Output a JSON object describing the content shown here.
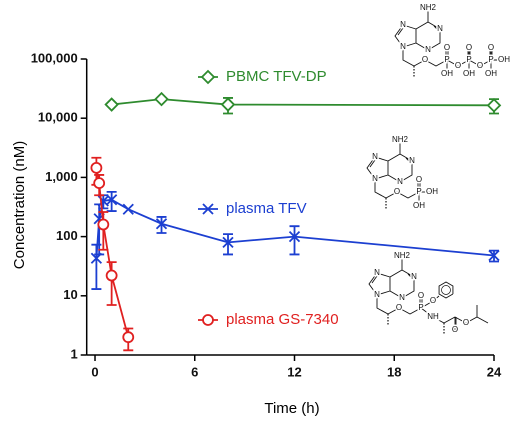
{
  "chart_data": {
    "type": "line",
    "x_label": "Time (h)",
    "y_label": "Concentration (nM)",
    "xlim": [
      -0.5,
      24
    ],
    "xticks": [
      0,
      6,
      12,
      18,
      24
    ],
    "ylim": [
      1,
      100000
    ],
    "yscale": "log",
    "yticks": [
      1,
      10,
      100,
      {
        "value": 1000,
        "label": "1,000"
      },
      {
        "value": 10000,
        "label": "10,000"
      },
      {
        "value": 100000,
        "label": "100,000"
      }
    ],
    "series": [
      {
        "name": "PBMC TFV-DP",
        "color": "#2e8b2e",
        "marker": "diamond",
        "x": [
          1,
          4,
          8,
          24
        ],
        "values": [
          17000,
          21000,
          17000,
          16500
        ],
        "errors": [
          null,
          null,
          5000,
          4500
        ]
      },
      {
        "name": "plasma TFV",
        "color": "#1c3fd1",
        "marker": "x",
        "x": [
          0.083,
          0.25,
          0.5,
          1,
          2,
          4,
          8,
          12,
          24
        ],
        "values": [
          43,
          200,
          400,
          420,
          290,
          165,
          80,
          100,
          48
        ],
        "errors": [
          30,
          150,
          100,
          150,
          null,
          50,
          30,
          50,
          10
        ]
      },
      {
        "name": "plasma GS-7340",
        "color": "#e02020",
        "marker": "circle",
        "x": [
          0.083,
          0.25,
          0.5,
          1,
          2
        ],
        "values": [
          1450,
          800,
          160,
          22,
          2
        ],
        "errors": [
          700,
          300,
          100,
          15,
          0.8
        ]
      }
    ]
  },
  "structures": [
    {
      "labels": [
        "NH2",
        "N",
        "N",
        "N",
        "N",
        "O",
        "P",
        "O",
        "OH",
        "O",
        "P",
        "O",
        "OH",
        "O",
        "P",
        "O",
        "OH",
        "OH"
      ]
    },
    {
      "labels": [
        "NH2",
        "N",
        "N",
        "N",
        "N",
        "O",
        "P",
        "O",
        "OH",
        "OH"
      ]
    },
    {
      "labels": [
        "NH2",
        "N",
        "N",
        "N",
        "N",
        "O",
        "P",
        "O",
        "O",
        "NH",
        "O",
        "O"
      ]
    }
  ]
}
